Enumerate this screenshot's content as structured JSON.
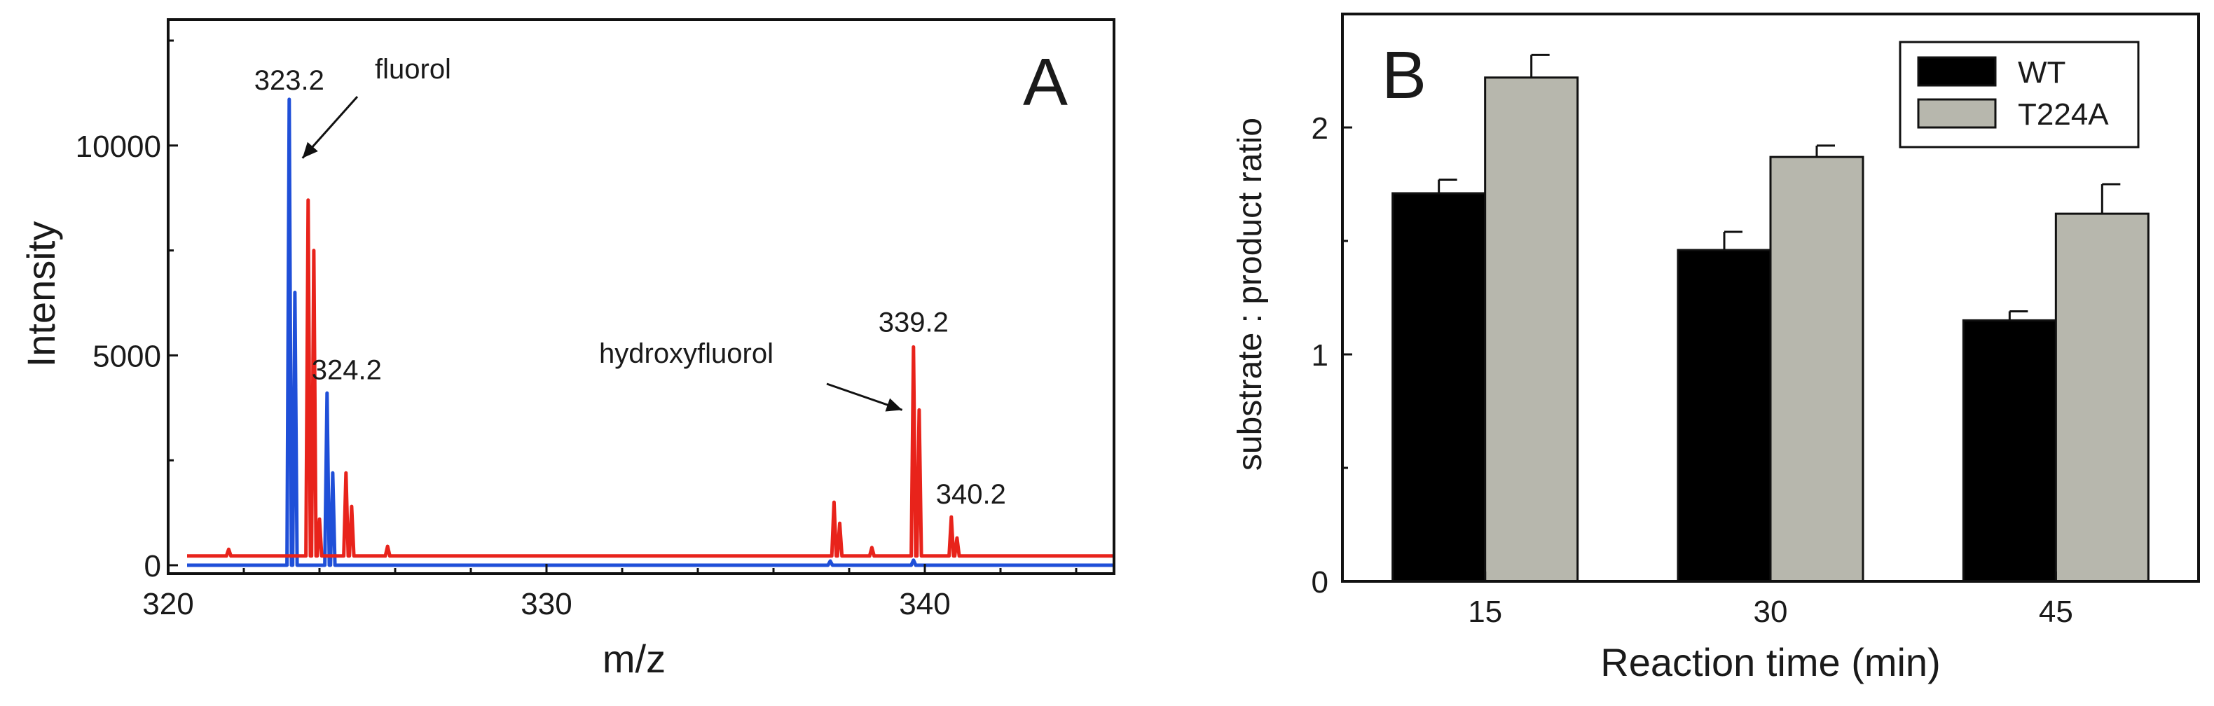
{
  "chart_data": [
    {
      "panel_label": "A",
      "type": "line",
      "xlabel": "m/z",
      "ylabel": "Intensity",
      "xlim": [
        320,
        345
      ],
      "ylim": [
        -200,
        13000
      ],
      "xticks": [
        320,
        330,
        340
      ],
      "yticks": [
        0,
        5000,
        10000
      ],
      "grid": false,
      "peak_labels": [
        {
          "text": "323.2",
          "x": 323.2,
          "y": 11100
        },
        {
          "text": "324.2",
          "x": 324.2,
          "y": 4100
        },
        {
          "text": "339.2",
          "x": 339.7,
          "y": 5200
        },
        {
          "text": "340.2",
          "x": 340.7,
          "y": 1100
        }
      ],
      "annotations": [
        {
          "text": "fluorol",
          "arrow_to": {
            "x": 323.55,
            "y": 9700
          }
        },
        {
          "text": "hydroxyfluorol",
          "arrow_to": {
            "x": 339.4,
            "y": 3700
          }
        }
      ],
      "series": [
        {
          "name": "blue trace",
          "color": "#1f4fd8",
          "baseline": 0,
          "peaks": [
            {
              "x": 323.2,
              "y": 11100
            },
            {
              "x": 323.35,
              "y": 6500
            },
            {
              "x": 324.2,
              "y": 4100
            },
            {
              "x": 324.35,
              "y": 2200
            },
            {
              "x": 339.7,
              "y": 120
            },
            {
              "x": 337.5,
              "y": 100
            }
          ]
        },
        {
          "name": "red trace",
          "color": "#e8231b",
          "baseline": 220,
          "peaks": [
            {
              "x": 321.6,
              "y": 380
            },
            {
              "x": 323.7,
              "y": 8700
            },
            {
              "x": 323.85,
              "y": 7500
            },
            {
              "x": 324.0,
              "y": 1100
            },
            {
              "x": 324.7,
              "y": 2200
            },
            {
              "x": 324.85,
              "y": 1400
            },
            {
              "x": 325.8,
              "y": 450
            },
            {
              "x": 337.6,
              "y": 1500
            },
            {
              "x": 337.75,
              "y": 1000
            },
            {
              "x": 338.6,
              "y": 420
            },
            {
              "x": 339.7,
              "y": 5200
            },
            {
              "x": 339.85,
              "y": 3700
            },
            {
              "x": 340.7,
              "y": 1150
            },
            {
              "x": 340.85,
              "y": 650
            }
          ]
        }
      ]
    },
    {
      "panel_label": "B",
      "type": "bar",
      "xlabel": "Reaction time (min)",
      "ylabel": "substrate : product ratio",
      "categories": [
        "15",
        "30",
        "45"
      ],
      "ylim": [
        0,
        2.5
      ],
      "yticks": [
        0,
        1,
        2
      ],
      "grid": false,
      "legend_position": "top-right",
      "series": [
        {
          "name": "WT",
          "color": "#000000",
          "values": [
            1.71,
            1.46,
            1.15
          ],
          "errors": [
            0.06,
            0.08,
            0.04
          ]
        },
        {
          "name": "T224A",
          "color": "#b7b7ad",
          "values": [
            2.22,
            1.87,
            1.62
          ],
          "errors": [
            0.1,
            0.05,
            0.13
          ]
        }
      ]
    }
  ]
}
